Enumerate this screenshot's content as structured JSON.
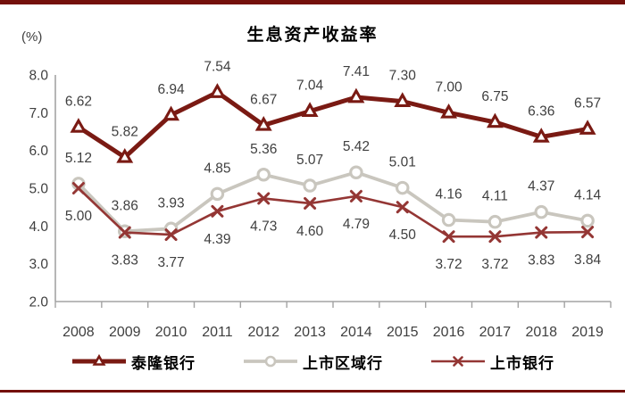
{
  "page": {
    "accent_bar_color": "#74100B"
  },
  "chart_data": {
    "type": "line",
    "title": "生息资产收益率",
    "ylabel": "(%)",
    "xlabel": "",
    "categories": [
      "2008",
      "2009",
      "2010",
      "2011",
      "2012",
      "2013",
      "2014",
      "2015",
      "2016",
      "2017",
      "2018",
      "2019"
    ],
    "ylim": [
      2.0,
      8.0
    ],
    "ytick_labels": [
      "2.0",
      "3.0",
      "4.0",
      "5.0",
      "6.0",
      "7.0",
      "8.0"
    ],
    "grid": "off",
    "legend_position": "bottom",
    "axis_color": "#a3a3a3",
    "label_text_color": "#3f3f3f",
    "series": [
      {
        "name": "泰隆银行",
        "marker": "triangle",
        "color": "#7A1A13",
        "label_position": "above",
        "values": [
          6.62,
          5.82,
          6.94,
          7.54,
          6.67,
          7.04,
          7.41,
          7.3,
          7.0,
          6.75,
          6.36,
          6.57
        ]
      },
      {
        "name": "上市区域行",
        "marker": "circle",
        "color": "#C9C6BE",
        "label_position": "above",
        "values": [
          5.12,
          3.86,
          3.93,
          4.85,
          5.36,
          5.07,
          5.42,
          5.01,
          4.16,
          4.11,
          4.37,
          4.14
        ]
      },
      {
        "name": "上市银行",
        "marker": "x",
        "color": "#943634",
        "label_position": "below",
        "values": [
          5.0,
          3.83,
          3.77,
          4.39,
          4.73,
          4.6,
          4.79,
          4.5,
          3.72,
          3.72,
          3.83,
          3.84
        ]
      }
    ]
  }
}
